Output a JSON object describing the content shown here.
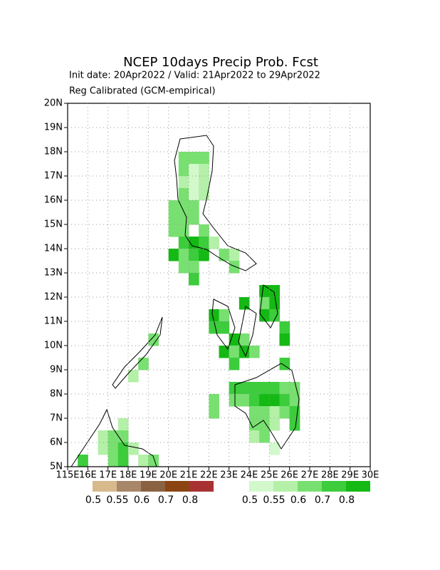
{
  "chart_data": {
    "type": "map-grid",
    "title": "NCEP 10days Precip Prob. Fcst",
    "subtitle": "Init date: 20Apr2022 / Valid: 21Apr2022 to 29Apr2022",
    "note": "Reg Calibrated (GCM-empirical)",
    "xlim": [
      115,
      130
    ],
    "ylim": [
      5,
      20
    ],
    "grid": true,
    "cell_size": 0.5,
    "xticks": [
      {
        "value": 115,
        "label": "115E"
      },
      {
        "value": 116,
        "label": "16E"
      },
      {
        "value": 117,
        "label": "17E"
      },
      {
        "value": 118,
        "label": "18E"
      },
      {
        "value": 119,
        "label": "19E"
      },
      {
        "value": 120,
        "label": "20E"
      },
      {
        "value": 121,
        "label": "21E"
      },
      {
        "value": 122,
        "label": "22E"
      },
      {
        "value": 123,
        "label": "23E"
      },
      {
        "value": 124,
        "label": "24E"
      },
      {
        "value": 125,
        "label": "25E"
      },
      {
        "value": 126,
        "label": "26E"
      },
      {
        "value": 127,
        "label": "27E"
      },
      {
        "value": 128,
        "label": "28E"
      },
      {
        "value": 129,
        "label": "29E"
      },
      {
        "value": 130,
        "label": "30E"
      }
    ],
    "yticks": [
      {
        "value": 5,
        "label": "5N"
      },
      {
        "value": 6,
        "label": "6N"
      },
      {
        "value": 7,
        "label": "7N"
      },
      {
        "value": 8,
        "label": "8N"
      },
      {
        "value": 9,
        "label": "9N"
      },
      {
        "value": 10,
        "label": "10N"
      },
      {
        "value": 11,
        "label": "11N"
      },
      {
        "value": 12,
        "label": "12N"
      },
      {
        "value": 13,
        "label": "13N"
      },
      {
        "value": 14,
        "label": "14N"
      },
      {
        "value": 15,
        "label": "15N"
      },
      {
        "value": 16,
        "label": "16N"
      },
      {
        "value": 17,
        "label": "17N"
      },
      {
        "value": 18,
        "label": "18N"
      },
      {
        "value": 19,
        "label": "19N"
      },
      {
        "value": 20,
        "label": "20N"
      }
    ],
    "legends": [
      {
        "colors": [
          "#d8b98b",
          "#a8866a",
          "#8a6242",
          "#8b4513",
          "#a83232"
        ],
        "levels": [
          0.5,
          0.55,
          0.6,
          0.7,
          0.8
        ]
      },
      {
        "colors": [
          "#d2f8cb",
          "#b4f0a8",
          "#78e070",
          "#3ccc3c",
          "#14b914"
        ],
        "levels": [
          0.5,
          0.55,
          0.6,
          0.7,
          0.8
        ]
      }
    ],
    "cells": [
      [
        120.5,
        17.5,
        0.65
      ],
      [
        121,
        17.5,
        0.65
      ],
      [
        121.5,
        17.5,
        0.65
      ],
      [
        120.5,
        17,
        0.65
      ],
      [
        121,
        17,
        0.52
      ],
      [
        121.5,
        17,
        0.57
      ],
      [
        120.5,
        16.5,
        0.57
      ],
      [
        121,
        16.5,
        0.52
      ],
      [
        121.5,
        16.5,
        0.57
      ],
      [
        120.5,
        16,
        0.65
      ],
      [
        121,
        16,
        0.52
      ],
      [
        121.5,
        16,
        0.57
      ],
      [
        120,
        15.5,
        0.65
      ],
      [
        120.5,
        15.5,
        0.65
      ],
      [
        121,
        15.5,
        0.65
      ],
      [
        120,
        15,
        0.65
      ],
      [
        120.5,
        15,
        0.65
      ],
      [
        121,
        15,
        0.65
      ],
      [
        120,
        14.5,
        0.65
      ],
      [
        120.5,
        14.5,
        0.65
      ],
      [
        121.5,
        14.5,
        0.65
      ],
      [
        120.5,
        14,
        0.75
      ],
      [
        121,
        14,
        0.85
      ],
      [
        121.5,
        14,
        0.75
      ],
      [
        122,
        14,
        0.57
      ],
      [
        120,
        13.5,
        0.85
      ],
      [
        120.5,
        13.5,
        0.65
      ],
      [
        121,
        13.5,
        0.75
      ],
      [
        121.5,
        13.5,
        0.85
      ],
      [
        122.5,
        13.5,
        0.65
      ],
      [
        123,
        13.5,
        0.57
      ],
      [
        120.5,
        13,
        0.65
      ],
      [
        121,
        13,
        0.65
      ],
      [
        123,
        13,
        0.65
      ],
      [
        121,
        12.5,
        0.75
      ],
      [
        124.5,
        12,
        0.85
      ],
      [
        125,
        12,
        0.85
      ],
      [
        123.5,
        11.5,
        0.85
      ],
      [
        124.5,
        11.5,
        0.65
      ],
      [
        125,
        11.5,
        0.85
      ],
      [
        122,
        11,
        0.85
      ],
      [
        122.5,
        11,
        0.65
      ],
      [
        124.5,
        11,
        0.85
      ],
      [
        125,
        11,
        0.75
      ],
      [
        122,
        10.5,
        0.75
      ],
      [
        122.5,
        10.5,
        0.75
      ],
      [
        125.5,
        10.5,
        0.75
      ],
      [
        123,
        10,
        0.85
      ],
      [
        123.5,
        10,
        0.65
      ],
      [
        125.5,
        10,
        0.85
      ],
      [
        122.5,
        9.5,
        0.85
      ],
      [
        123,
        9.5,
        0.65
      ],
      [
        123.5,
        9.5,
        0.85
      ],
      [
        124,
        9.5,
        0.65
      ],
      [
        123,
        9,
        0.75
      ],
      [
        125.5,
        9,
        0.75
      ],
      [
        123,
        8,
        0.75
      ],
      [
        123.5,
        8,
        0.75
      ],
      [
        124,
        8,
        0.75
      ],
      [
        124.5,
        8,
        0.75
      ],
      [
        125,
        8,
        0.75
      ],
      [
        125.5,
        8,
        0.65
      ],
      [
        126,
        8,
        0.65
      ],
      [
        122,
        7.5,
        0.65
      ],
      [
        123,
        7.5,
        0.65
      ],
      [
        123.5,
        7.5,
        0.65
      ],
      [
        124,
        7.5,
        0.75
      ],
      [
        124.5,
        7.5,
        0.85
      ],
      [
        125,
        7.5,
        0.85
      ],
      [
        125.5,
        7.5,
        0.75
      ],
      [
        126,
        7.5,
        0.65
      ],
      [
        122,
        7,
        0.65
      ],
      [
        124,
        7,
        0.65
      ],
      [
        124.5,
        7,
        0.65
      ],
      [
        125,
        7,
        0.57
      ],
      [
        125.5,
        7,
        0.65
      ],
      [
        126,
        7,
        0.75
      ],
      [
        124,
        6.5,
        0.65
      ],
      [
        124.5,
        6.5,
        0.65
      ],
      [
        125,
        6.5,
        0.57
      ],
      [
        126,
        6.5,
        0.75
      ],
      [
        124,
        6,
        0.57
      ],
      [
        124.5,
        6,
        0.65
      ],
      [
        125,
        5.5,
        0.52
      ],
      [
        119,
        10,
        0.65
      ],
      [
        118.5,
        9,
        0.65
      ],
      [
        118,
        8.5,
        0.57
      ],
      [
        117.5,
        6.5,
        0.57
      ],
      [
        116.5,
        6,
        0.57
      ],
      [
        117,
        6,
        0.65
      ],
      [
        117.5,
        6,
        0.65
      ],
      [
        116.5,
        5.5,
        0.57
      ],
      [
        117,
        5.5,
        0.65
      ],
      [
        117.5,
        5.5,
        0.75
      ],
      [
        118,
        5.5,
        0.57
      ],
      [
        115.5,
        5,
        0.75
      ],
      [
        117,
        5,
        0.65
      ],
      [
        117.5,
        5,
        0.75
      ],
      [
        118.5,
        5,
        0.57
      ],
      [
        119,
        5,
        0.65
      ]
    ]
  }
}
